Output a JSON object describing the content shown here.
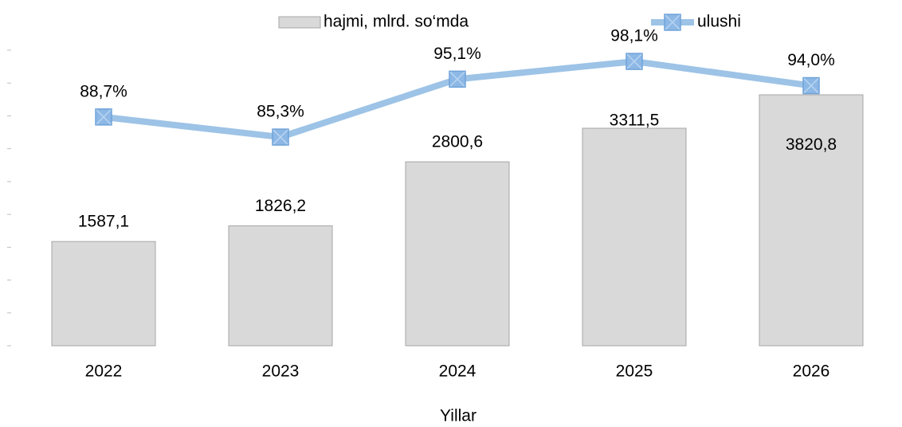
{
  "chart_data": {
    "type": "bar",
    "x_label": "Yillar",
    "categories": [
      "2022",
      "2023",
      "2024",
      "2025",
      "2026"
    ],
    "series": [
      {
        "name": "hajmi, mlrd. so‘mda",
        "type": "bar",
        "color": "#d9d9d9",
        "values": [
          1587.1,
          1826.2,
          2800.6,
          3311.5,
          3820.8
        ],
        "value_labels": [
          "1587,1",
          "1826,2",
          "2800,6",
          "3311,5",
          "3820,8"
        ]
      },
      {
        "name": "ulushi",
        "type": "line",
        "axis": "y2",
        "color": "#9dc3e6",
        "values": [
          88.7,
          85.3,
          95.1,
          98.1,
          94.0
        ],
        "value_labels": [
          "88,7%",
          "85,3%",
          "95,1%",
          "98,1%",
          "94,0%"
        ]
      }
    ],
    "ylim": [
      0,
      4500
    ],
    "yticks": [
      0,
      500,
      1000,
      1500,
      2000,
      2500,
      3000,
      3500,
      4000,
      4500
    ],
    "y2lim": [
      50,
      100
    ],
    "legend": "top"
  }
}
